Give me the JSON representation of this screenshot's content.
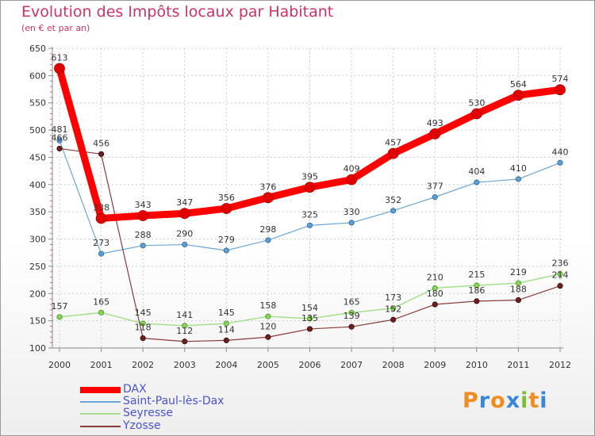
{
  "title": "Evolution des Impôts locaux par Habitant",
  "subtitle": "(en € et par an)",
  "logo": {
    "text": "Proxiti",
    "letters": [
      "P",
      "r",
      "o",
      "x",
      "i",
      "t",
      "i"
    ],
    "colors": [
      "#f28c1e",
      "#3a86d9",
      "#f28c1e",
      "#3a86d9",
      "#78be30",
      "#f28c1e",
      "#3a86d9"
    ]
  },
  "chart_data": {
    "type": "line",
    "title": "Evolution des Impôts locaux par Habitant",
    "subtitle": "(en € et par an)",
    "xlabel": "",
    "ylabel": "",
    "x": [
      "2000",
      "2001",
      "2002",
      "2003",
      "2004",
      "2005",
      "2006",
      "2007",
      "2008",
      "2009",
      "2010",
      "2011",
      "2012"
    ],
    "ylim": [
      100,
      650
    ],
    "yticks": [
      100,
      150,
      200,
      250,
      300,
      350,
      400,
      450,
      500,
      550,
      600,
      650
    ],
    "grid": true,
    "legend_position": "bottom-left",
    "series": [
      {
        "name": "DAX",
        "color": "#ff0000",
        "values": [
          613,
          338,
          343,
          347,
          356,
          376,
          395,
          409,
          457,
          493,
          530,
          564,
          574
        ]
      },
      {
        "name": "Saint-Paul-lès-Dax",
        "color": "#5e9fd3",
        "values": [
          481,
          273,
          288,
          290,
          279,
          298,
          325,
          330,
          352,
          377,
          404,
          410,
          440
        ]
      },
      {
        "name": "Seyresse",
        "color": "#99e07a",
        "values": [
          157,
          165,
          145,
          141,
          145,
          158,
          154,
          165,
          173,
          210,
          215,
          219,
          236
        ]
      },
      {
        "name": "Yzosse",
        "color": "#7a2a2a",
        "values": [
          466,
          456,
          118,
          112,
          114,
          120,
          135,
          139,
          152,
          180,
          186,
          188,
          214
        ]
      }
    ]
  }
}
